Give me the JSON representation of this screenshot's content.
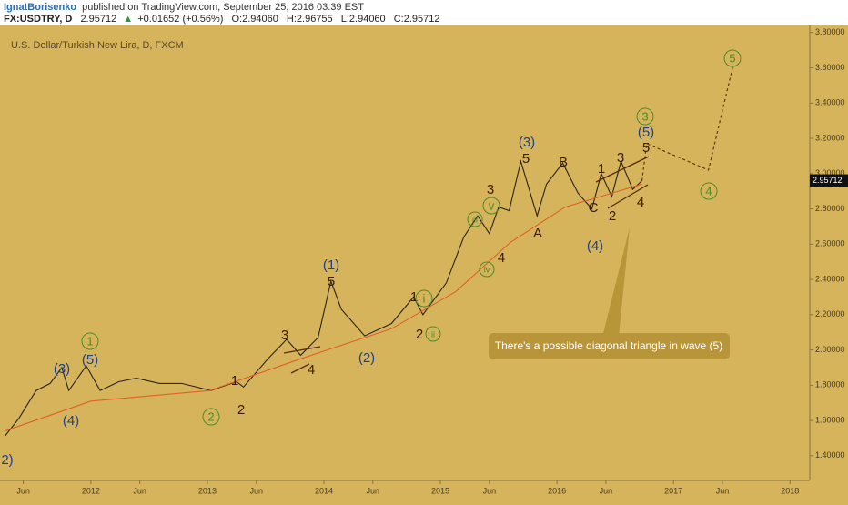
{
  "header": {
    "author": "IgnatBorisenko",
    "published": "published on TradingView.com, September 25, 2016 03:39 EST",
    "symbol": "FX:USDTRY, D",
    "last": "2.95712",
    "change": "+0.01652 (+0.56%)",
    "open": "O:2.94060",
    "high": "H:2.96755",
    "low": "L:2.94060",
    "close": "C:2.95712"
  },
  "chart_data": {
    "type": "line",
    "title": "U.S. Dollar/Turkish New Lira, D, FXCM",
    "xlim": [
      2011.22,
      2018.17
    ],
    "ylim": [
      1.26,
      3.84
    ],
    "xticks": [
      {
        "value": 2011.42,
        "label": "Jun"
      },
      {
        "value": 2012,
        "label": "2012"
      },
      {
        "value": 2012.42,
        "label": "Jun"
      },
      {
        "value": 2013,
        "label": "2013"
      },
      {
        "value": 2013.42,
        "label": "Jun"
      },
      {
        "value": 2014,
        "label": "2014"
      },
      {
        "value": 2014.42,
        "label": "Jun"
      },
      {
        "value": 2015,
        "label": "2015"
      },
      {
        "value": 2015.42,
        "label": "Jun"
      },
      {
        "value": 2016,
        "label": "2016"
      },
      {
        "value": 2016.42,
        "label": "Jun"
      },
      {
        "value": 2017,
        "label": "2017"
      },
      {
        "value": 2017.42,
        "label": "Jun"
      },
      {
        "value": 2018,
        "label": "2018"
      }
    ],
    "yticks": [
      {
        "value": 1.4,
        "label": "1.40000"
      },
      {
        "value": 1.6,
        "label": "1.60000"
      },
      {
        "value": 1.8,
        "label": "1.80000"
      },
      {
        "value": 2.0,
        "label": "2.00000"
      },
      {
        "value": 2.2,
        "label": "2.20000"
      },
      {
        "value": 2.4,
        "label": "2.40000"
      },
      {
        "value": 2.6,
        "label": "2.60000"
      },
      {
        "value": 2.8,
        "label": "2.80000"
      },
      {
        "value": 3.0,
        "label": "3.00000"
      },
      {
        "value": 3.2,
        "label": "3.20000"
      },
      {
        "value": 3.4,
        "label": "3.40000"
      },
      {
        "value": 3.6,
        "label": "3.60000"
      },
      {
        "value": 3.8,
        "label": "3.80000"
      }
    ],
    "series": [
      {
        "color": "#2b2418",
        "style": "solid",
        "x": [
          2011.26,
          2011.38,
          2011.53,
          2011.65,
          2011.75,
          2011.81,
          2011.96,
          2012.08,
          2012.24,
          2012.39,
          2012.59,
          2012.78,
          2013.03,
          2013.25,
          2013.31,
          2013.52,
          2013.68,
          2013.8,
          2013.95,
          2014.06,
          2014.15,
          2014.35,
          2014.58,
          2014.77,
          2014.85,
          2015.05,
          2015.2,
          2015.32,
          2015.42,
          2015.5,
          2015.59,
          2015.69,
          2015.83,
          2015.91,
          2016.05,
          2016.18,
          2016.3,
          2016.38,
          2016.47,
          2016.55,
          2016.65,
          2016.73
        ],
        "values": [
          1.51,
          1.61,
          1.77,
          1.81,
          1.9,
          1.77,
          1.91,
          1.77,
          1.82,
          1.84,
          1.81,
          1.81,
          1.77,
          1.82,
          1.79,
          1.95,
          2.06,
          1.97,
          2.07,
          2.39,
          2.23,
          2.08,
          2.15,
          2.3,
          2.2,
          2.38,
          2.64,
          2.76,
          2.66,
          2.81,
          2.79,
          3.07,
          2.76,
          2.94,
          3.06,
          2.89,
          2.8,
          3.0,
          2.87,
          3.07,
          2.91,
          2.96
        ]
      },
      {
        "color": "#e0602a",
        "style": "solid",
        "x": [
          2011.26,
          2012.0,
          2013.02,
          2013.8,
          2014.58,
          2015.13,
          2015.6,
          2016.07,
          2016.73
        ],
        "values": [
          1.54,
          1.71,
          1.77,
          1.95,
          2.12,
          2.33,
          2.61,
          2.81,
          2.94
        ]
      },
      {
        "color": "#5a3a10",
        "style": "dotted",
        "x": [
          2016.73,
          2016.77,
          2017.3,
          2017.51
        ],
        "values": [
          2.96,
          3.17,
          3.02,
          3.61
        ]
      }
    ],
    "last_price_label": "2.95712",
    "annotations": [
      "There's a possible diagonal triangle in wave (5)"
    ],
    "wave_labels": [
      {
        "text": "2)",
        "color": "#1f3f8f"
      },
      {
        "text": "(3)",
        "color": "#1f3f8f"
      },
      {
        "text": "(4)",
        "color": "#1f3f8f"
      },
      {
        "text": "(5)",
        "color": "#1f3f8f"
      },
      {
        "text": "1",
        "color": "#4f8a2a",
        "circled": true
      },
      {
        "text": "2",
        "color": "#4f8a2a",
        "circled": true
      },
      {
        "text": "1",
        "color": "#3a1a08"
      },
      {
        "text": "2",
        "color": "#3a1a08"
      },
      {
        "text": "3",
        "color": "#3a1a08"
      },
      {
        "text": "4",
        "color": "#3a1a08"
      },
      {
        "text": "(1)",
        "color": "#1f3f8f"
      },
      {
        "text": "5",
        "color": "#3a1a08"
      },
      {
        "text": "(2)",
        "color": "#1f3f8f"
      },
      {
        "text": "1",
        "color": "#3a1a08"
      },
      {
        "text": "i",
        "color": "#4f8a2a",
        "circled": true
      },
      {
        "text": "2",
        "color": "#3a1a08"
      },
      {
        "text": "ii",
        "color": "#4f8a2a",
        "circled": true
      },
      {
        "text": "iii",
        "color": "#4f8a2a",
        "circled": true
      },
      {
        "text": "3",
        "color": "#3a1a08"
      },
      {
        "text": "v",
        "color": "#4f8a2a",
        "circled": true
      },
      {
        "text": "iv",
        "color": "#4f8a2a",
        "circled": true
      },
      {
        "text": "4",
        "color": "#3a1a08"
      },
      {
        "text": "(3)",
        "color": "#1f3f8f"
      },
      {
        "text": "5",
        "color": "#3a1a08"
      },
      {
        "text": "A",
        "color": "#3a1a08"
      },
      {
        "text": "B",
        "color": "#3a1a08"
      },
      {
        "text": "C",
        "color": "#3a1a08"
      },
      {
        "text": "(4)",
        "color": "#1f3f8f"
      },
      {
        "text": "1",
        "color": "#3a1a08"
      },
      {
        "text": "2",
        "color": "#3a1a08"
      },
      {
        "text": "3",
        "color": "#3a1a08"
      },
      {
        "text": "4",
        "color": "#3a1a08"
      },
      {
        "text": "5",
        "color": "#3a1a08"
      },
      {
        "text": "(5)",
        "color": "#1f3f8f"
      },
      {
        "text": "3",
        "color": "#4f8a2a",
        "circled": true
      },
      {
        "text": "4",
        "color": "#4f8a2a",
        "circled": true
      },
      {
        "text": "5",
        "color": "#4f8a2a",
        "circled": true
      }
    ]
  }
}
